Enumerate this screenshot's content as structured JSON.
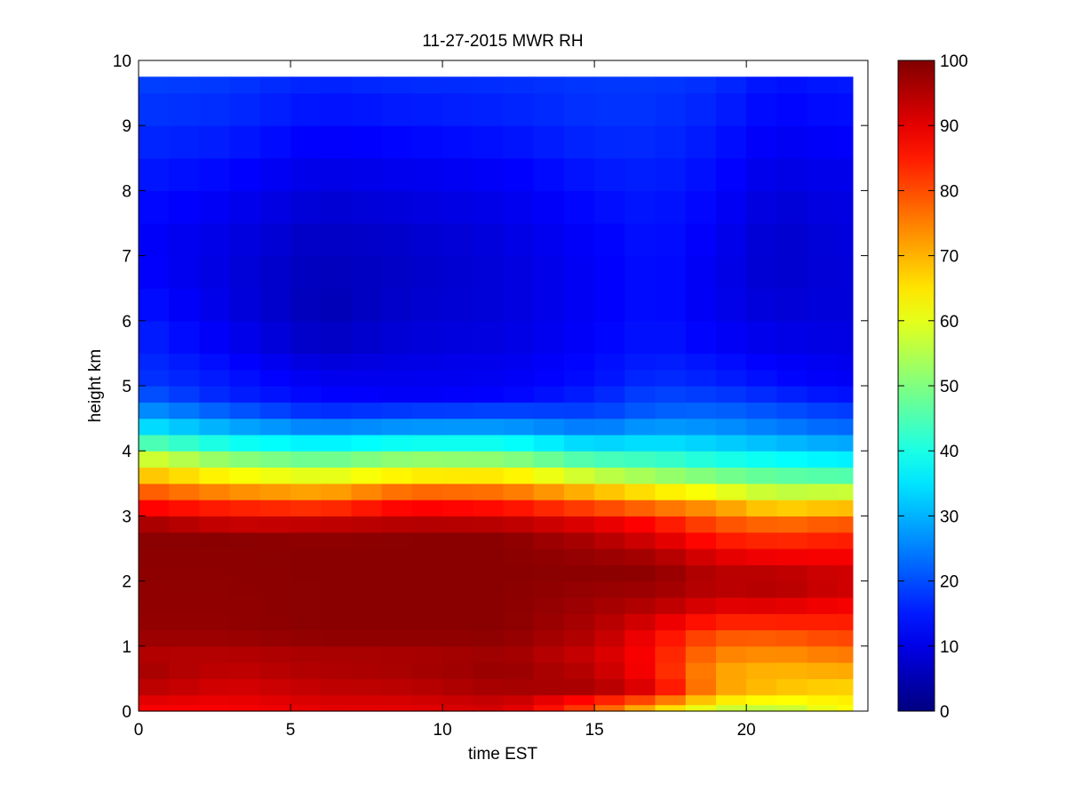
{
  "chart_data": {
    "type": "heatmap",
    "title": "11-27-2015 MWR RH",
    "xlabel": "time EST",
    "ylabel": "height km",
    "xlim": [
      0,
      24
    ],
    "ylim": [
      0,
      10
    ],
    "x_ticks": [
      0,
      5,
      10,
      15,
      20
    ],
    "y_ticks": [
      0,
      1,
      2,
      3,
      4,
      5,
      6,
      7,
      8,
      9,
      10
    ],
    "colorbar": {
      "range": [
        0,
        100
      ],
      "ticks": [
        0,
        10,
        20,
        30,
        40,
        50,
        60,
        70,
        80,
        90,
        100
      ],
      "colormap": "jet"
    },
    "grid": false,
    "x": [
      0,
      1,
      2,
      3,
      4,
      5,
      6,
      7,
      8,
      9,
      10,
      11,
      12,
      13,
      14,
      15,
      16,
      17,
      18,
      19,
      20,
      21,
      22,
      23
    ],
    "heights": [
      0,
      0.1,
      0.25,
      0.5,
      0.75,
      1.0,
      1.25,
      1.5,
      1.75,
      2.0,
      2.25,
      2.5,
      2.75,
      3.0,
      3.25,
      3.5,
      3.75,
      4.0,
      4.25,
      4.5,
      4.75,
      5.0,
      5.25,
      5.5,
      6.0,
      6.5,
      7.0,
      7.5,
      8.0,
      8.5,
      9.0,
      9.5,
      9.75
    ],
    "profiles": [
      {
        "time": 0,
        "values": [
          [
            0.05,
            88
          ],
          [
            0.5,
            97
          ],
          [
            0.9,
            95
          ],
          [
            1.2,
            98
          ],
          [
            2.8,
            99
          ],
          [
            3.0,
            92
          ],
          [
            3.3,
            82
          ],
          [
            3.6,
            70
          ],
          [
            3.9,
            58
          ],
          [
            4.2,
            42
          ],
          [
            4.5,
            30
          ],
          [
            5.0,
            18
          ],
          [
            6.0,
            15
          ],
          [
            7.0,
            12
          ],
          [
            8.0,
            14
          ],
          [
            9.0,
            17
          ],
          [
            9.7,
            19
          ]
        ]
      },
      {
        "time": 3,
        "values": [
          [
            0.05,
            88
          ],
          [
            0.5,
            93
          ],
          [
            0.9,
            95
          ],
          [
            1.2,
            98
          ],
          [
            2.7,
            99
          ],
          [
            2.9,
            92
          ],
          [
            3.2,
            82
          ],
          [
            3.5,
            68
          ],
          [
            3.8,
            55
          ],
          [
            4.1,
            40
          ],
          [
            4.4,
            28
          ],
          [
            4.8,
            16
          ],
          [
            6.0,
            10
          ],
          [
            7.0,
            9
          ],
          [
            8.0,
            12
          ],
          [
            9.0,
            16
          ],
          [
            9.7,
            18
          ]
        ]
      },
      {
        "time": 6,
        "values": [
          [
            0.05,
            90
          ],
          [
            0.5,
            95
          ],
          [
            0.9,
            96
          ],
          [
            1.2,
            99
          ],
          [
            2.6,
            99
          ],
          [
            2.9,
            93
          ],
          [
            3.1,
            84
          ],
          [
            3.4,
            70
          ],
          [
            3.7,
            56
          ],
          [
            4.0,
            42
          ],
          [
            4.3,
            28
          ],
          [
            4.7,
            14
          ],
          [
            5.5,
            8
          ],
          [
            6.0,
            5
          ],
          [
            7.0,
            6
          ],
          [
            8.0,
            9
          ],
          [
            9.0,
            13
          ],
          [
            9.7,
            16
          ]
        ]
      },
      {
        "time": 9,
        "values": [
          [
            0.05,
            90
          ],
          [
            0.5,
            96
          ],
          [
            0.9,
            96
          ],
          [
            1.2,
            99
          ],
          [
            2.7,
            99
          ],
          [
            3.0,
            92
          ],
          [
            3.3,
            82
          ],
          [
            3.5,
            70
          ],
          [
            3.8,
            56
          ],
          [
            4.1,
            40
          ],
          [
            4.4,
            26
          ],
          [
            4.8,
            12
          ],
          [
            6.0,
            8
          ],
          [
            7.0,
            7
          ],
          [
            8.0,
            10
          ],
          [
            9.0,
            14
          ],
          [
            9.7,
            17
          ]
        ]
      },
      {
        "time": 12,
        "values": [
          [
            0.05,
            92
          ],
          [
            0.5,
            98
          ],
          [
            0.9,
            97
          ],
          [
            1.2,
            99
          ],
          [
            2.7,
            99
          ],
          [
            3.0,
            91
          ],
          [
            3.3,
            80
          ],
          [
            3.6,
            66
          ],
          [
            3.9,
            50
          ],
          [
            4.2,
            35
          ],
          [
            4.5,
            22
          ],
          [
            4.9,
            12
          ],
          [
            6.0,
            9
          ],
          [
            7.0,
            9
          ],
          [
            8.0,
            11
          ],
          [
            9.0,
            15
          ],
          [
            9.7,
            17
          ]
        ]
      },
      {
        "time": 15,
        "values": [
          [
            0.05,
            80
          ],
          [
            0.4,
            97
          ],
          [
            0.8,
            92
          ],
          [
            1.2,
            95
          ],
          [
            2.2,
            99
          ],
          [
            2.6,
            96
          ],
          [
            2.9,
            90
          ],
          [
            3.2,
            78
          ],
          [
            3.5,
            63
          ],
          [
            3.8,
            48
          ],
          [
            4.1,
            34
          ],
          [
            4.5,
            20
          ],
          [
            5.0,
            14
          ],
          [
            6.0,
            12
          ],
          [
            7.0,
            12
          ],
          [
            8.0,
            14
          ],
          [
            9.0,
            17
          ],
          [
            9.7,
            18
          ]
        ]
      },
      {
        "time": 17,
        "values": [
          [
            0.05,
            68
          ],
          [
            0.3,
            90
          ],
          [
            0.7,
            86
          ],
          [
            1.2,
            88
          ],
          [
            1.7,
            96
          ],
          [
            2.2,
            99
          ],
          [
            2.6,
            92
          ],
          [
            2.9,
            86
          ],
          [
            3.2,
            74
          ],
          [
            3.5,
            58
          ],
          [
            3.8,
            46
          ],
          [
            4.2,
            32
          ],
          [
            4.6,
            22
          ],
          [
            5.2,
            16
          ],
          [
            6.0,
            14
          ],
          [
            7.0,
            14
          ],
          [
            8.0,
            15
          ],
          [
            9.0,
            17
          ],
          [
            9.7,
            18
          ]
        ]
      },
      {
        "time": 19,
        "values": [
          [
            0.05,
            58
          ],
          [
            0.3,
            72
          ],
          [
            0.7,
            72
          ],
          [
            1.2,
            80
          ],
          [
            1.6,
            90
          ],
          [
            2.0,
            96
          ],
          [
            2.4,
            90
          ],
          [
            2.8,
            82
          ],
          [
            3.1,
            74
          ],
          [
            3.4,
            60
          ],
          [
            3.7,
            46
          ],
          [
            4.0,
            36
          ],
          [
            4.4,
            26
          ],
          [
            5.0,
            16
          ],
          [
            6.0,
            11
          ],
          [
            7.0,
            11
          ],
          [
            8.0,
            13
          ],
          [
            9.0,
            15
          ],
          [
            9.7,
            17
          ]
        ]
      },
      {
        "time": 21,
        "values": [
          [
            0.05,
            56
          ],
          [
            0.3,
            68
          ],
          [
            0.7,
            70
          ],
          [
            1.2,
            80
          ],
          [
            1.6,
            90
          ],
          [
            2.0,
            97
          ],
          [
            2.4,
            88
          ],
          [
            2.8,
            80
          ],
          [
            3.1,
            68
          ],
          [
            3.4,
            55
          ],
          [
            3.7,
            44
          ],
          [
            4.0,
            34
          ],
          [
            4.4,
            24
          ],
          [
            5.0,
            14
          ],
          [
            6.0,
            9
          ],
          [
            7.0,
            7
          ],
          [
            8.0,
            9
          ],
          [
            9.0,
            12
          ],
          [
            9.7,
            14
          ]
        ]
      },
      {
        "time": 23,
        "values": [
          [
            0.05,
            62
          ],
          [
            0.3,
            66
          ],
          [
            0.7,
            72
          ],
          [
            1.2,
            82
          ],
          [
            1.6,
            88
          ],
          [
            2.0,
            94
          ],
          [
            2.4,
            88
          ],
          [
            2.8,
            82
          ],
          [
            3.1,
            70
          ],
          [
            3.4,
            56
          ],
          [
            3.7,
            42
          ],
          [
            4.0,
            32
          ],
          [
            4.4,
            22
          ],
          [
            5.0,
            12
          ],
          [
            6.0,
            9
          ],
          [
            7.0,
            9
          ],
          [
            8.0,
            10
          ],
          [
            9.0,
            13
          ],
          [
            9.7,
            15
          ]
        ]
      }
    ]
  }
}
